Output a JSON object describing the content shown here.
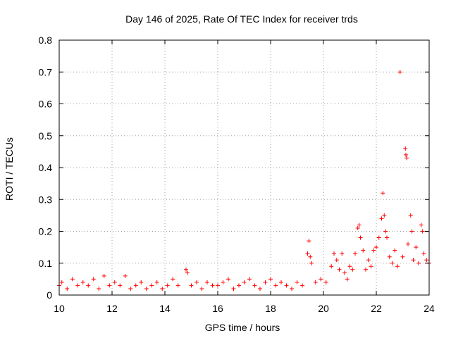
{
  "chart_data": {
    "type": "scatter",
    "title": "Day 146 of 2025, Rate Of TEC Index for receiver trds",
    "xlabel": "GPS time / hours",
    "ylabel": "ROTI / TECUs",
    "xlim": [
      10,
      24
    ],
    "ylim": [
      0,
      0.8
    ],
    "x_ticks": [
      "10",
      "12",
      "14",
      "16",
      "18",
      "20",
      "22",
      "24"
    ],
    "y_ticks": [
      "0",
      "0.1",
      "0.2",
      "0.3",
      "0.4",
      "0.5",
      "0.6",
      "0.7",
      "0.8"
    ],
    "grid": true,
    "marker": "+",
    "series_color": "#ff0000",
    "series": [
      {
        "values": [
          [
            10.0,
            0.03
          ],
          [
            10.1,
            0.04
          ],
          [
            10.3,
            0.02
          ],
          [
            10.5,
            0.05
          ],
          [
            10.7,
            0.03
          ],
          [
            10.9,
            0.04
          ],
          [
            11.1,
            0.03
          ],
          [
            11.3,
            0.05
          ],
          [
            11.5,
            0.02
          ],
          [
            11.7,
            0.06
          ],
          [
            11.9,
            0.03
          ],
          [
            12.1,
            0.04
          ],
          [
            12.3,
            0.03
          ],
          [
            12.5,
            0.06
          ],
          [
            12.7,
            0.02
          ],
          [
            12.9,
            0.03
          ],
          [
            13.1,
            0.04
          ],
          [
            13.3,
            0.02
          ],
          [
            13.5,
            0.03
          ],
          [
            13.7,
            0.04
          ],
          [
            13.9,
            0.02
          ],
          [
            14.1,
            0.03
          ],
          [
            14.3,
            0.05
          ],
          [
            14.5,
            0.03
          ],
          [
            14.8,
            0.08
          ],
          [
            14.85,
            0.07
          ],
          [
            15.0,
            0.03
          ],
          [
            15.2,
            0.04
          ],
          [
            15.4,
            0.02
          ],
          [
            15.6,
            0.04
          ],
          [
            15.8,
            0.03
          ],
          [
            16.0,
            0.03
          ],
          [
            16.2,
            0.04
          ],
          [
            16.4,
            0.05
          ],
          [
            16.6,
            0.02
          ],
          [
            16.8,
            0.03
          ],
          [
            17.0,
            0.04
          ],
          [
            17.2,
            0.05
          ],
          [
            17.4,
            0.03
          ],
          [
            17.6,
            0.02
          ],
          [
            17.8,
            0.04
          ],
          [
            18.0,
            0.05
          ],
          [
            18.2,
            0.03
          ],
          [
            18.4,
            0.04
          ],
          [
            18.6,
            0.03
          ],
          [
            18.8,
            0.02
          ],
          [
            19.0,
            0.04
          ],
          [
            19.2,
            0.03
          ],
          [
            19.4,
            0.13
          ],
          [
            19.45,
            0.17
          ],
          [
            19.5,
            0.12
          ],
          [
            19.55,
            0.1
          ],
          [
            19.7,
            0.04
          ],
          [
            19.9,
            0.05
          ],
          [
            20.1,
            0.04
          ],
          [
            20.3,
            0.09
          ],
          [
            20.4,
            0.13
          ],
          [
            20.5,
            0.11
          ],
          [
            20.6,
            0.08
          ],
          [
            20.7,
            0.13
          ],
          [
            20.8,
            0.07
          ],
          [
            20.9,
            0.05
          ],
          [
            21.0,
            0.09
          ],
          [
            21.1,
            0.08
          ],
          [
            21.2,
            0.13
          ],
          [
            21.3,
            0.21
          ],
          [
            21.35,
            0.22
          ],
          [
            21.4,
            0.18
          ],
          [
            21.5,
            0.14
          ],
          [
            21.6,
            0.08
          ],
          [
            21.7,
            0.11
          ],
          [
            21.8,
            0.09
          ],
          [
            21.9,
            0.14
          ],
          [
            22.0,
            0.15
          ],
          [
            22.1,
            0.18
          ],
          [
            22.2,
            0.24
          ],
          [
            22.25,
            0.32
          ],
          [
            22.3,
            0.25
          ],
          [
            22.35,
            0.2
          ],
          [
            22.4,
            0.18
          ],
          [
            22.5,
            0.12
          ],
          [
            22.6,
            0.1
          ],
          [
            22.7,
            0.14
          ],
          [
            22.8,
            0.09
          ],
          [
            22.9,
            0.7
          ],
          [
            23.0,
            0.12
          ],
          [
            23.1,
            0.46
          ],
          [
            23.12,
            0.44
          ],
          [
            23.15,
            0.43
          ],
          [
            23.2,
            0.16
          ],
          [
            23.3,
            0.25
          ],
          [
            23.35,
            0.2
          ],
          [
            23.4,
            0.11
          ],
          [
            23.5,
            0.15
          ],
          [
            23.6,
            0.1
          ],
          [
            23.7,
            0.22
          ],
          [
            23.75,
            0.2
          ],
          [
            23.8,
            0.13
          ],
          [
            23.9,
            0.11
          ],
          [
            24.0,
            0.1
          ]
        ]
      }
    ]
  }
}
